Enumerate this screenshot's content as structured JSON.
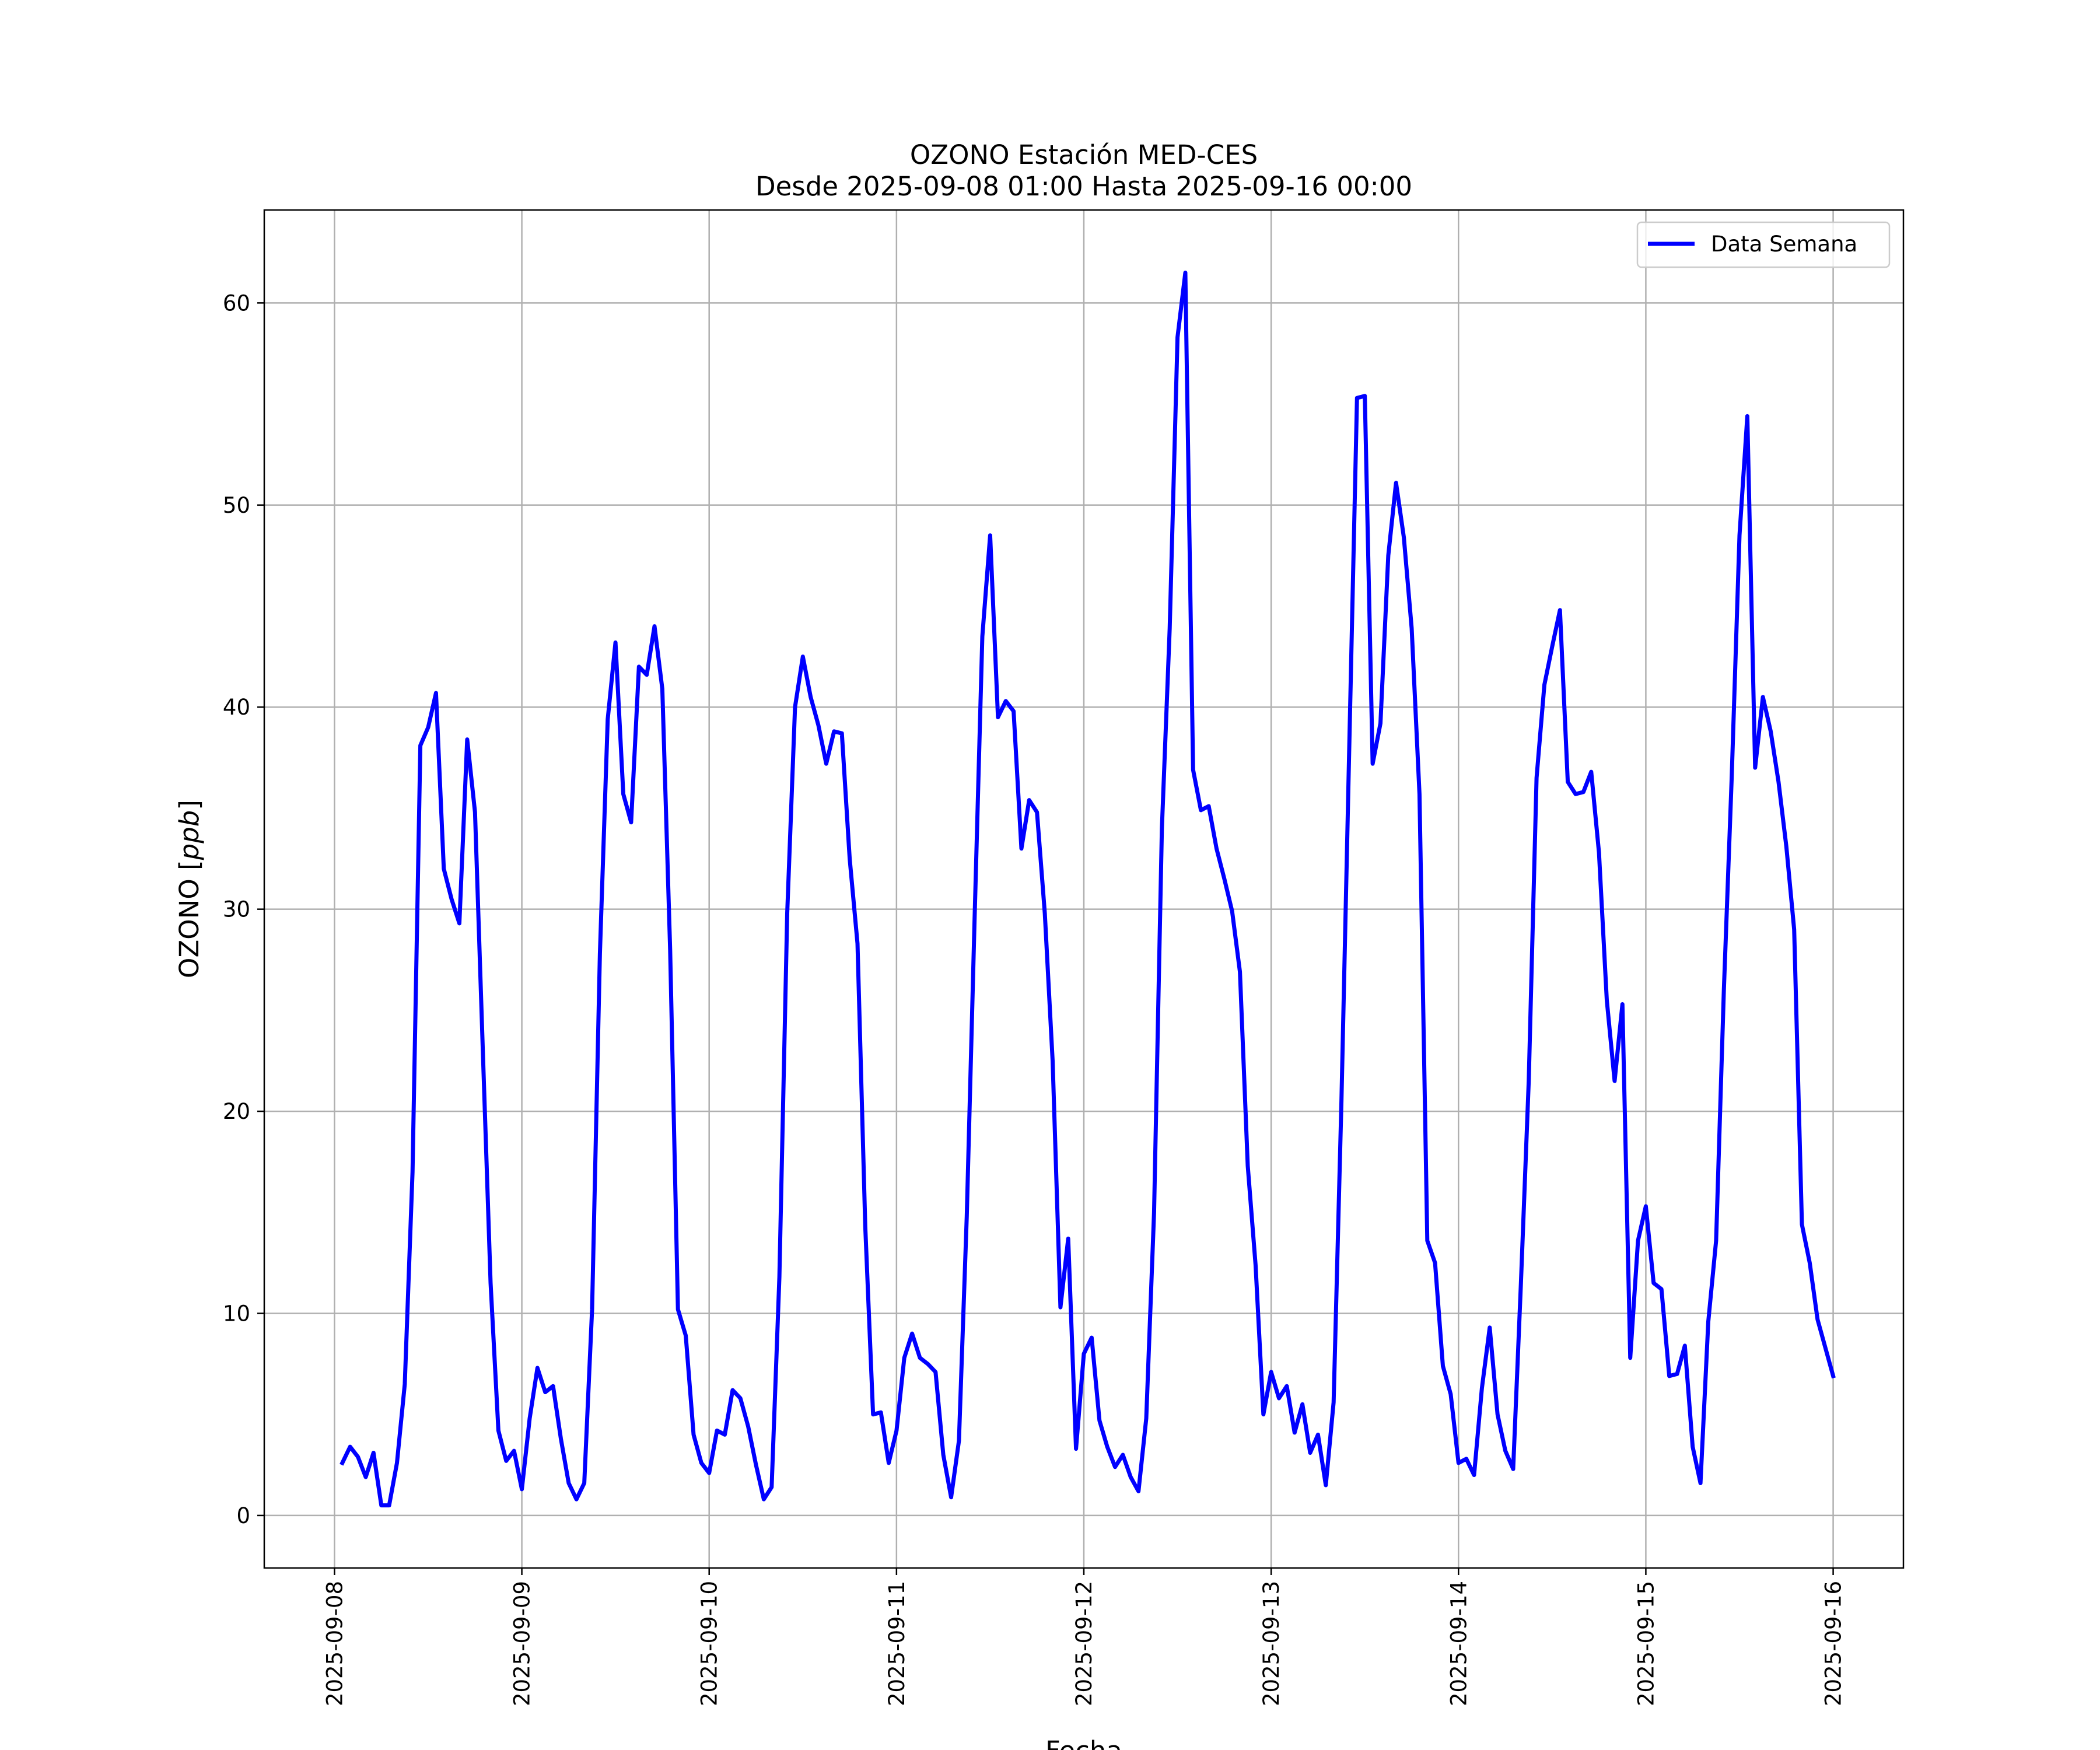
{
  "chart_data": {
    "type": "line",
    "title": "OZONO Estación MED-CES",
    "subtitle": "Desde 2025-09-08 01:00 Hasta 2025-09-16 00:00",
    "xlabel": "Fecha",
    "ylabel": "OZONO [ppb]",
    "ylabel_main": "OZONO ",
    "ylabel_unit_open": "[",
    "ylabel_unit": "ppb",
    "ylabel_unit_close": "]",
    "xlim": [
      "2025-09-07 15:00",
      "2025-09-16 09:00"
    ],
    "ylim": [
      -2.6,
      64.6
    ],
    "x_ticks": [
      "2025-09-08",
      "2025-09-09",
      "2025-09-10",
      "2025-09-11",
      "2025-09-12",
      "2025-09-13",
      "2025-09-14",
      "2025-09-15",
      "2025-09-16"
    ],
    "y_ticks": [
      0,
      10,
      20,
      30,
      40,
      50,
      60
    ],
    "grid": true,
    "legend_position": "top-right",
    "series": [
      {
        "name": "Data Semana",
        "color": "#0000ff",
        "x_start": "2025-09-08 01:00",
        "x_step_hours": 1,
        "values": [
          2.6,
          3.4,
          2.9,
          1.9,
          3.1,
          0.5,
          0.5,
          2.6,
          6.5,
          17.0,
          38.1,
          39.0,
          40.7,
          32.0,
          30.5,
          29.3,
          38.4,
          34.8,
          23.0,
          11.5,
          4.2,
          2.7,
          3.2,
          1.3,
          4.8,
          7.3,
          6.1,
          6.4,
          3.8,
          1.6,
          0.8,
          1.6,
          10.2,
          27.8,
          39.4,
          43.2,
          35.7,
          34.3,
          42.0,
          41.6,
          44.0,
          40.9,
          28.0,
          10.2,
          8.9,
          4.0,
          2.6,
          2.1,
          4.2,
          4.0,
          6.2,
          5.8,
          4.4,
          2.5,
          0.8,
          1.4,
          11.8,
          29.8,
          40.0,
          42.5,
          40.5,
          39.1,
          37.2,
          38.8,
          38.7,
          32.5,
          28.3,
          14.3,
          5.0,
          5.1,
          2.6,
          4.2,
          7.8,
          9.0,
          7.8,
          7.5,
          7.1,
          3.0,
          0.9,
          3.7,
          14.8,
          29.5,
          43.5,
          48.5,
          39.5,
          40.3,
          39.8,
          33.0,
          35.4,
          34.8,
          29.8,
          22.5,
          10.3,
          13.7,
          3.3,
          8.0,
          8.8,
          4.7,
          3.4,
          2.4,
          3.0,
          1.9,
          1.2,
          4.8,
          15.0,
          34.0,
          43.9,
          58.3,
          61.5,
          36.9,
          34.9,
          35.1,
          33.0,
          31.5,
          29.9,
          26.9,
          17.3,
          12.4,
          5.0,
          7.1,
          5.8,
          6.4,
          4.1,
          5.5,
          3.1,
          4.0,
          1.5,
          5.6,
          20.5,
          38.0,
          55.3,
          55.4,
          37.2,
          39.2,
          47.5,
          51.1,
          48.4,
          43.9,
          35.7,
          13.6,
          12.5,
          7.4,
          6.0,
          2.6,
          2.8,
          2.0,
          6.3,
          9.3,
          5.0,
          3.2,
          2.3,
          11.5,
          21.5,
          36.5,
          41.1,
          43.0,
          44.8,
          36.3,
          35.7,
          35.8,
          36.8,
          32.8,
          25.5,
          21.5,
          25.3,
          7.8,
          13.6,
          15.3,
          11.5,
          11.2,
          6.9,
          7.0,
          8.4,
          3.4,
          1.6,
          9.6,
          13.6,
          26.0,
          36.5,
          48.5,
          54.4,
          37.0,
          40.5,
          38.8,
          36.3,
          33.1,
          29.0,
          14.4,
          12.5,
          9.7,
          8.3,
          6.9
        ]
      }
    ]
  }
}
